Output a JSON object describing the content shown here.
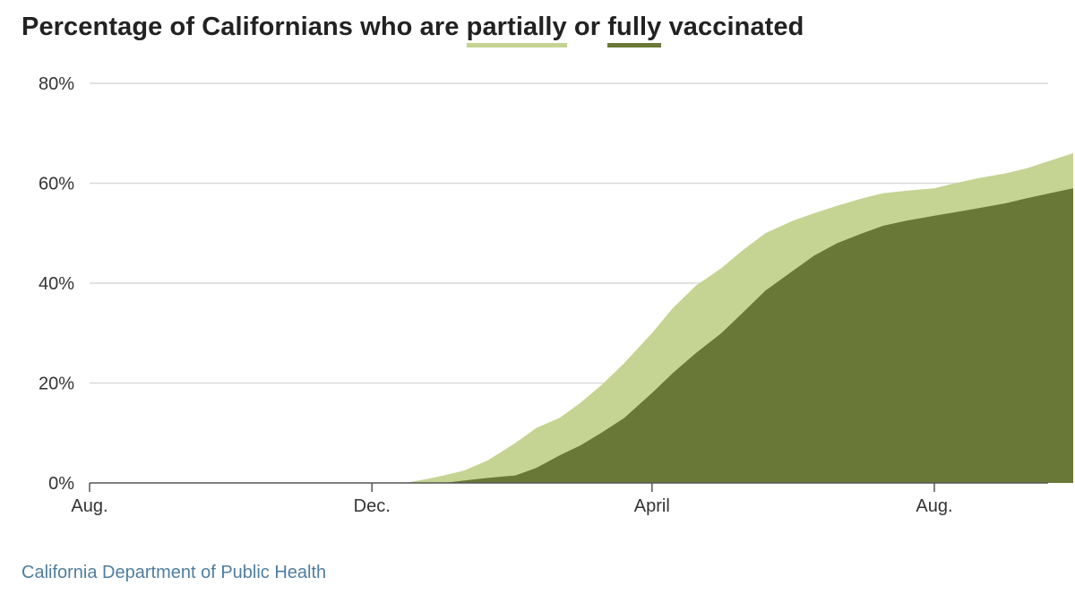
{
  "title": {
    "prefix": "Percentage of Californians who are ",
    "partial_word": "partially",
    "middle": " or ",
    "full_word": "fully",
    "suffix": " vaccinated"
  },
  "source": "California Department of Public Health",
  "colors": {
    "partial": "#c5d393",
    "full": "#6a7837",
    "grid": "#d9d9d9",
    "axis": "#555555",
    "source_text": "#4f7ea0"
  },
  "chart_data": {
    "type": "area",
    "title": "Percentage of Californians who are partially or fully vaccinated",
    "xlabel": "",
    "ylabel": "",
    "x_ticks": [
      "Aug.",
      "Dec.",
      "April",
      "Aug."
    ],
    "y_ticks": [
      "0%",
      "20%",
      "40%",
      "60%",
      "80%"
    ],
    "ylim": [
      0,
      80
    ],
    "grid": true,
    "x": [
      "2020-08-01",
      "2020-12-01",
      "2020-12-15",
      "2020-12-25",
      "2021-01-01",
      "2021-01-10",
      "2021-01-20",
      "2021-02-01",
      "2021-02-10",
      "2021-02-20",
      "2021-03-01",
      "2021-03-10",
      "2021-03-20",
      "2021-04-01",
      "2021-04-10",
      "2021-04-20",
      "2021-05-01",
      "2021-05-10",
      "2021-05-20",
      "2021-06-01",
      "2021-06-10",
      "2021-06-20",
      "2021-07-01",
      "2021-07-10",
      "2021-07-20",
      "2021-08-01",
      "2021-08-10",
      "2021-08-20",
      "2021-09-01",
      "2021-09-10",
      "2021-09-20",
      "2021-09-30"
    ],
    "series": [
      {
        "name": "partially",
        "values": [
          0,
          0,
          0,
          0.8,
          1.5,
          2.5,
          4.5,
          8,
          11,
          13,
          16,
          19.5,
          24,
          30,
          35,
          39.5,
          43,
          46.5,
          50,
          52.5,
          54,
          55.5,
          57,
          58,
          58.5,
          59,
          60,
          61,
          62,
          63,
          64.5,
          66
        ]
      },
      {
        "name": "fully",
        "values": [
          0,
          0,
          0,
          0,
          0,
          0.5,
          1,
          1.5,
          3,
          5.5,
          7.5,
          10,
          13,
          18,
          22,
          26,
          30,
          34,
          38.5,
          42.5,
          45.5,
          48,
          50,
          51.5,
          52.5,
          53.5,
          54.2,
          55,
          56,
          57,
          58,
          59
        ]
      }
    ]
  }
}
